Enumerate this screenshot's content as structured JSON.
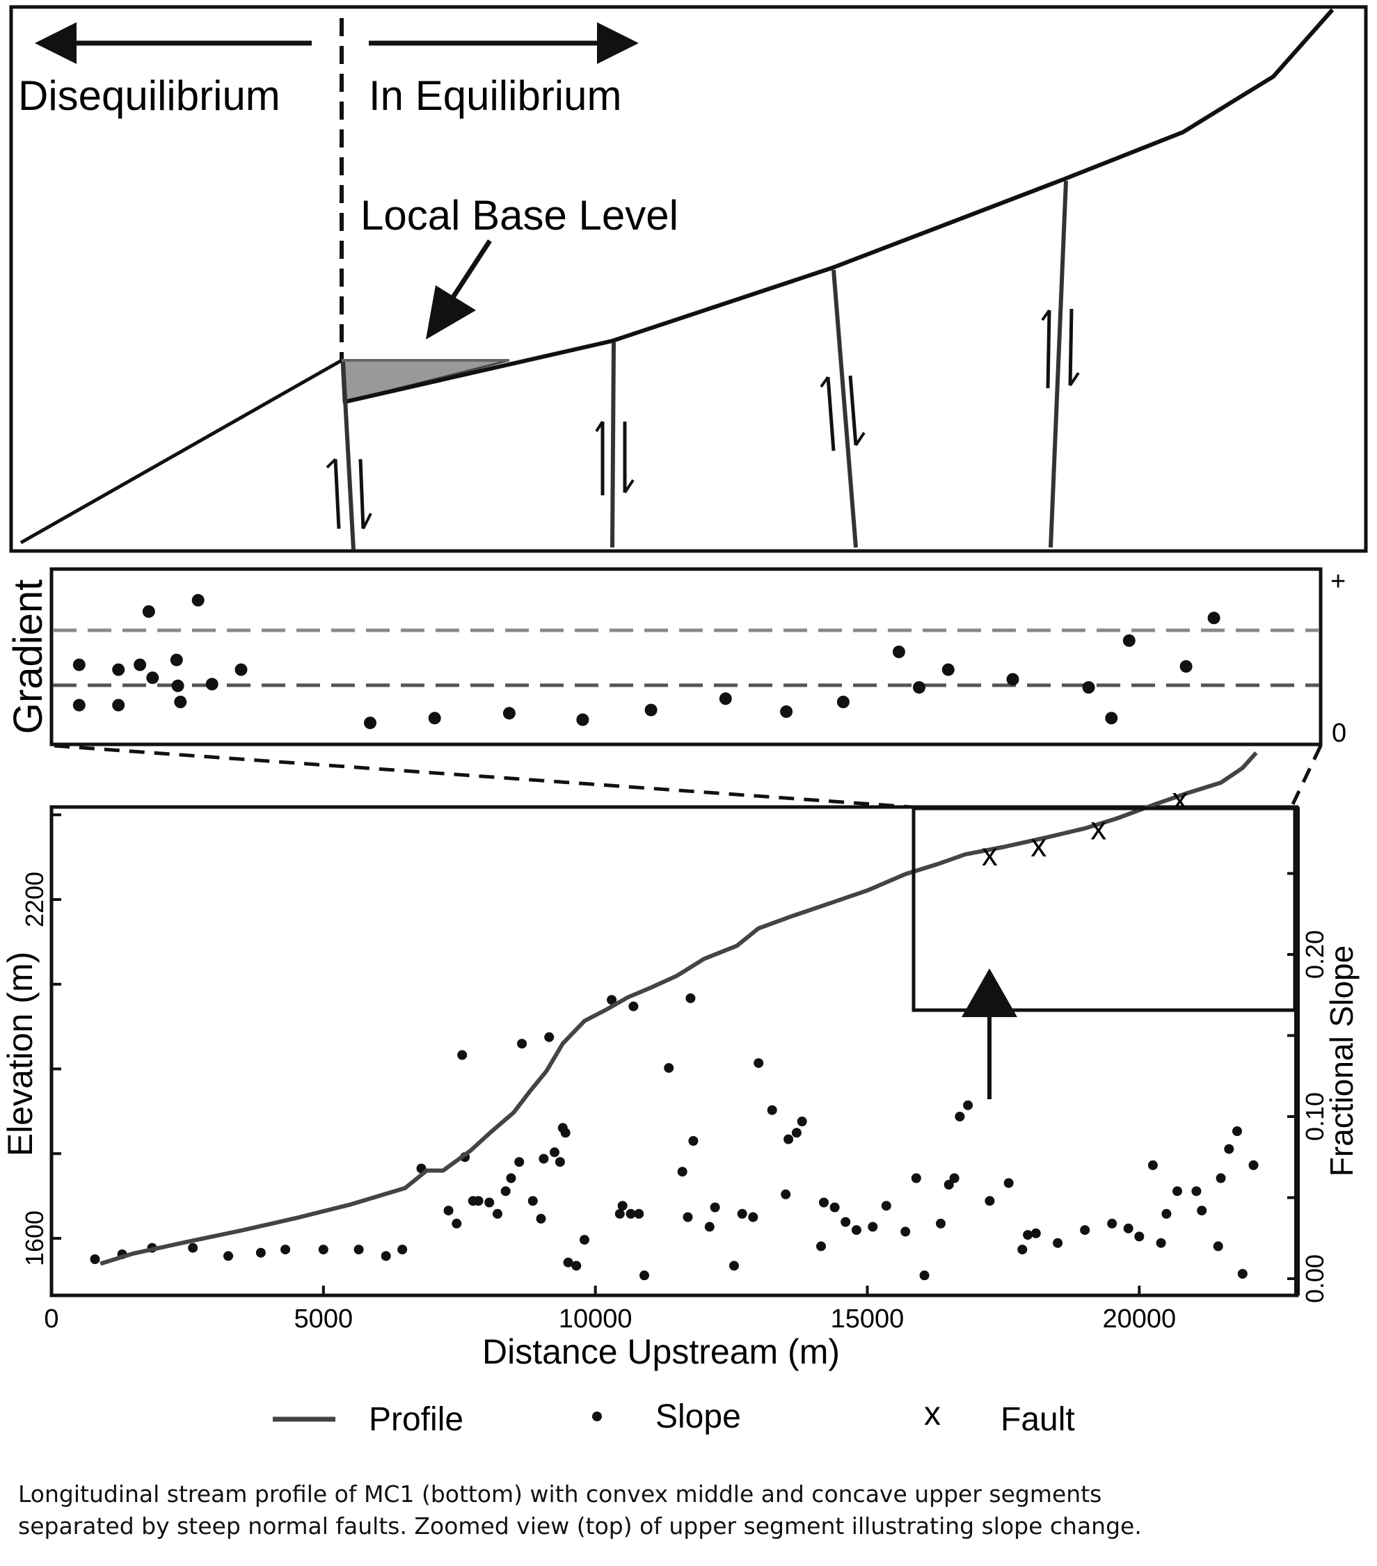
{
  "top_panel": {
    "left_label": "Disequilibrium",
    "right_label": "In Equilibrium",
    "base_level_label": "Local Base Level"
  },
  "gradient_panel": {
    "ylabel": "Gradient",
    "top_tick": "+",
    "bottom_tick": "0",
    "points": [
      [
        0.1,
        0.45
      ],
      [
        0.1,
        0.2
      ],
      [
        3.2,
        0.42
      ],
      [
        3.2,
        0.2
      ],
      [
        5.6,
        0.78
      ],
      [
        4.9,
        0.45
      ],
      [
        5.9,
        0.37
      ],
      [
        7.8,
        0.48
      ],
      [
        8.1,
        0.22
      ],
      [
        7.9,
        0.32
      ],
      [
        9.5,
        0.85
      ],
      [
        10.6,
        0.33
      ],
      [
        12.9,
        0.42
      ],
      [
        23.1,
        0.09
      ],
      [
        28.2,
        0.12
      ],
      [
        34.1,
        0.15
      ],
      [
        39.9,
        0.11
      ],
      [
        45.3,
        0.17
      ],
      [
        51.2,
        0.24
      ],
      [
        56.0,
        0.16
      ],
      [
        60.5,
        0.22
      ],
      [
        64.9,
        0.53
      ],
      [
        66.5,
        0.31
      ],
      [
        68.8,
        0.42
      ],
      [
        73.9,
        0.36
      ],
      [
        79.9,
        0.31
      ],
      [
        81.7,
        0.12
      ],
      [
        83.1,
        0.6
      ],
      [
        87.6,
        0.44
      ],
      [
        89.8,
        0.74
      ]
    ],
    "upper_threshold": 0.67,
    "lower_threshold": 0.34
  },
  "main_chart": {
    "xlabel": "Distance Upstream (m)",
    "ylabel_left": "Elevation (m)",
    "ylabel_right": "Fractional Slope",
    "x_ticks": [
      "0",
      "5000",
      "10000",
      "15000",
      "20000"
    ],
    "y_left_ticks": [
      "1600",
      "2200"
    ],
    "y_right_ticks": [
      "0.00",
      "0.10",
      "0.20"
    ],
    "legend": {
      "profile": "Profile",
      "slope": "Slope",
      "fault_symbol": "x",
      "fault": "Fault"
    }
  },
  "chart_data": {
    "type": "line",
    "xlabel": "Distance Upstream (m)",
    "ylabel": "Elevation (m)",
    "ylabel_right": "Fractional Slope",
    "xlim": [
      0,
      22900
    ],
    "elevation_ticks": [
      1600,
      2200
    ],
    "slope_ylim": [
      -0.01,
      0.285
    ],
    "series": [
      {
        "name": "Profile",
        "x": [
          900,
          1500,
          2500,
          3500,
          4500,
          5500,
          6500,
          6900,
          7200,
          7700,
          8100,
          8500,
          8800,
          9100,
          9400,
          9800,
          10200,
          10600,
          11000,
          11500,
          12000,
          12600,
          13000,
          13600,
          14300,
          15000,
          15700,
          16300,
          16800,
          17500,
          18300,
          19000,
          19600,
          20300,
          20900,
          21500,
          21900,
          22150
        ],
        "y": [
          1555,
          1573,
          1594,
          1614,
          1636,
          1660,
          1689,
          1720,
          1720,
          1755,
          1790,
          1823,
          1861,
          1896,
          1945,
          1985,
          2005,
          2027,
          2043,
          2065,
          2095,
          2118,
          2149,
          2170,
          2193,
          2216,
          2245,
          2263,
          2280,
          2293,
          2310,
          2326,
          2344,
          2369,
          2389,
          2407,
          2433,
          2460
        ]
      },
      {
        "name": "Slope",
        "x": [
          800,
          1300,
          1850,
          2600,
          3250,
          3850,
          4300,
          5000,
          5650,
          6150,
          6450,
          6800,
          7300,
          7450,
          7550,
          7600,
          7750,
          7850,
          8050,
          8200,
          8350,
          8450,
          8600,
          8650,
          8850,
          9000,
          9050,
          9150,
          9250,
          9350,
          9400,
          9450,
          9500,
          9650,
          9800,
          10300,
          10450,
          10500,
          10650,
          10700,
          10800,
          10900,
          11350,
          11600,
          11700,
          11750,
          11800,
          12100,
          12200,
          12550,
          12700,
          12900,
          13000,
          13250,
          13500,
          13550,
          13700,
          13800,
          14150,
          14200,
          14400,
          14600,
          14800,
          15100,
          15350,
          15700,
          15900,
          16050,
          16350,
          16500,
          16600,
          16700,
          16850,
          17250,
          17600,
          17850,
          17950,
          18100,
          18500,
          19000,
          19500,
          19800,
          20000,
          20250,
          20400,
          20500,
          20700,
          21050,
          21150,
          21450,
          21500,
          21650,
          21800,
          21900,
          22100
        ],
        "y": [
          0.012,
          0.015,
          0.019,
          0.019,
          0.014,
          0.016,
          0.018,
          0.018,
          0.018,
          0.014,
          0.018,
          0.068,
          0.042,
          0.034,
          0.138,
          0.075,
          0.048,
          0.048,
          0.047,
          0.04,
          0.054,
          0.062,
          0.072,
          0.145,
          0.048,
          0.037,
          0.074,
          0.149,
          0.078,
          0.072,
          0.093,
          0.09,
          0.01,
          0.008,
          0.024,
          0.172,
          0.04,
          0.045,
          0.04,
          0.168,
          0.04,
          0.002,
          0.13,
          0.066,
          0.038,
          0.173,
          0.085,
          0.032,
          0.044,
          0.008,
          0.04,
          0.038,
          0.133,
          0.104,
          0.052,
          0.086,
          0.09,
          0.097,
          0.02,
          0.047,
          0.044,
          0.035,
          0.03,
          0.032,
          0.045,
          0.029,
          0.062,
          0.002,
          0.034,
          0.058,
          0.062,
          0.1,
          0.107,
          0.048,
          0.059,
          0.018,
          0.027,
          0.028,
          0.022,
          0.03,
          0.034,
          0.031,
          0.026,
          0.07,
          0.022,
          0.04,
          0.054,
          0.054,
          0.042,
          0.02,
          0.062,
          0.08,
          0.091,
          0.003,
          0.07
        ]
      },
      {
        "name": "Fault",
        "x": [
          17250,
          18150,
          19250,
          20750
        ],
        "y": [
          2280,
          2296,
          2326,
          2378
        ]
      }
    ]
  },
  "caption": [
    "Longitudinal stream profile of MC1 (bottom) with convex middle and concave upper segments",
    "separated by steep normal faults. Zoomed view (top) of upper segment illustrating slope change."
  ]
}
